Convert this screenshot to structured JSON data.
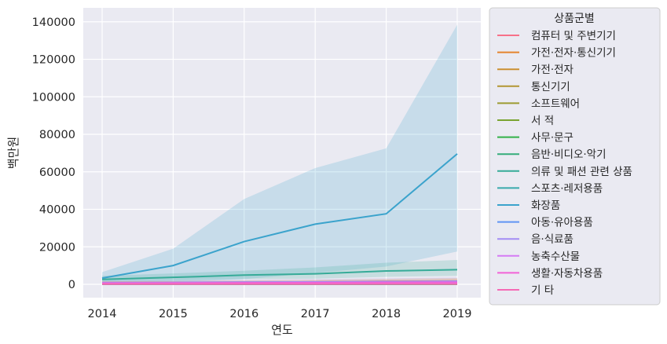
{
  "chart_data": {
    "type": "line",
    "title": "",
    "xlabel": "연도",
    "ylabel": "백만원",
    "x": [
      2014,
      2015,
      2016,
      2017,
      2018,
      2019
    ],
    "xlim": [
      2013.75,
      2019.25
    ],
    "ylim": [
      -7000,
      146000
    ],
    "yticks": [
      0,
      20000,
      40000,
      60000,
      80000,
      100000,
      120000,
      140000
    ],
    "grid": true,
    "legend_title": "상품군별",
    "legend_position": "outside-right",
    "series": [
      {
        "name": "컴퓨터 및 주변기기",
        "color": "#f77189",
        "values": [
          400,
          450,
          500,
          550,
          650,
          700
        ]
      },
      {
        "name": "가전·전자·통신기기",
        "color": "#e5832d",
        "values": [
          900,
          1000,
          1150,
          1300,
          1600,
          1800
        ]
      },
      {
        "name": "가전·전자",
        "color": "#cb8f32",
        "values": [
          500,
          550,
          650,
          750,
          900,
          1000
        ]
      },
      {
        "name": "통신기기",
        "color": "#b29633",
        "values": [
          300,
          350,
          450,
          500,
          650,
          700
        ]
      },
      {
        "name": "소프트웨어",
        "color": "#9c9b31",
        "values": [
          50,
          50,
          50,
          50,
          50,
          50
        ]
      },
      {
        "name": "서 적",
        "color": "#7aa431",
        "values": [
          200,
          220,
          250,
          280,
          300,
          330
        ]
      },
      {
        "name": "사무·문구",
        "color": "#32b148",
        "values": [
          100,
          110,
          120,
          130,
          150,
          170
        ]
      },
      {
        "name": "음반·비디오·악기",
        "color": "#35ad7a",
        "values": [
          50,
          55,
          60,
          65,
          70,
          80
        ]
      },
      {
        "name": "의류 및 패션 관련 상품",
        "color": "#36ab98",
        "values": [
          2600,
          3700,
          4900,
          5600,
          7100,
          7800
        ]
      },
      {
        "name": "스포츠·레저용품",
        "color": "#38a9ac",
        "values": [
          300,
          350,
          400,
          450,
          550,
          650
        ]
      },
      {
        "name": "화장품",
        "color": "#3ba3cc",
        "values": [
          3300,
          10000,
          22800,
          32100,
          37600,
          69600
        ]
      },
      {
        "name": "아동·유아용품",
        "color": "#5f94f4",
        "values": [
          250,
          300,
          350,
          400,
          450,
          500
        ]
      },
      {
        "name": "음·식료품",
        "color": "#a38cf4",
        "values": [
          900,
          1000,
          1200,
          1300,
          1500,
          1700
        ]
      },
      {
        "name": "농축수산물",
        "color": "#d57af4",
        "values": [
          150,
          170,
          200,
          230,
          260,
          300
        ]
      },
      {
        "name": "생활·자동차용품",
        "color": "#f262d7",
        "values": [
          600,
          700,
          800,
          900,
          1000,
          1100
        ]
      },
      {
        "name": "기 타",
        "color": "#f56ab5",
        "values": [
          100,
          110,
          120,
          130,
          140,
          150
        ]
      }
    ],
    "bands": [
      {
        "series": "화장품",
        "color": "#3ba3cc",
        "lower": [
          300,
          1000,
          2800,
          6000,
          9500,
          17500
        ],
        "upper": [
          6500,
          19000,
          45500,
          62000,
          72500,
          138500
        ]
      },
      {
        "series": "의류 및 패션 관련 상품",
        "color": "#36ab98",
        "lower": [
          1500,
          2000,
          2800,
          3000,
          4000,
          4500
        ],
        "upper": [
          4500,
          5800,
          7200,
          9000,
          11500,
          13000
        ]
      },
      {
        "series": "음·식료품",
        "color": "#a38cf4",
        "lower": [
          200,
          250,
          300,
          350,
          400,
          450
        ],
        "upper": [
          1800,
          2000,
          2400,
          2800,
          3200,
          3600
        ]
      },
      {
        "series": "가전·전자·통신기기",
        "color": "#e5832d",
        "lower": [
          300,
          350,
          400,
          450,
          500,
          550
        ],
        "upper": [
          1600,
          1800,
          2100,
          2400,
          2900,
          3300
        ]
      }
    ]
  }
}
